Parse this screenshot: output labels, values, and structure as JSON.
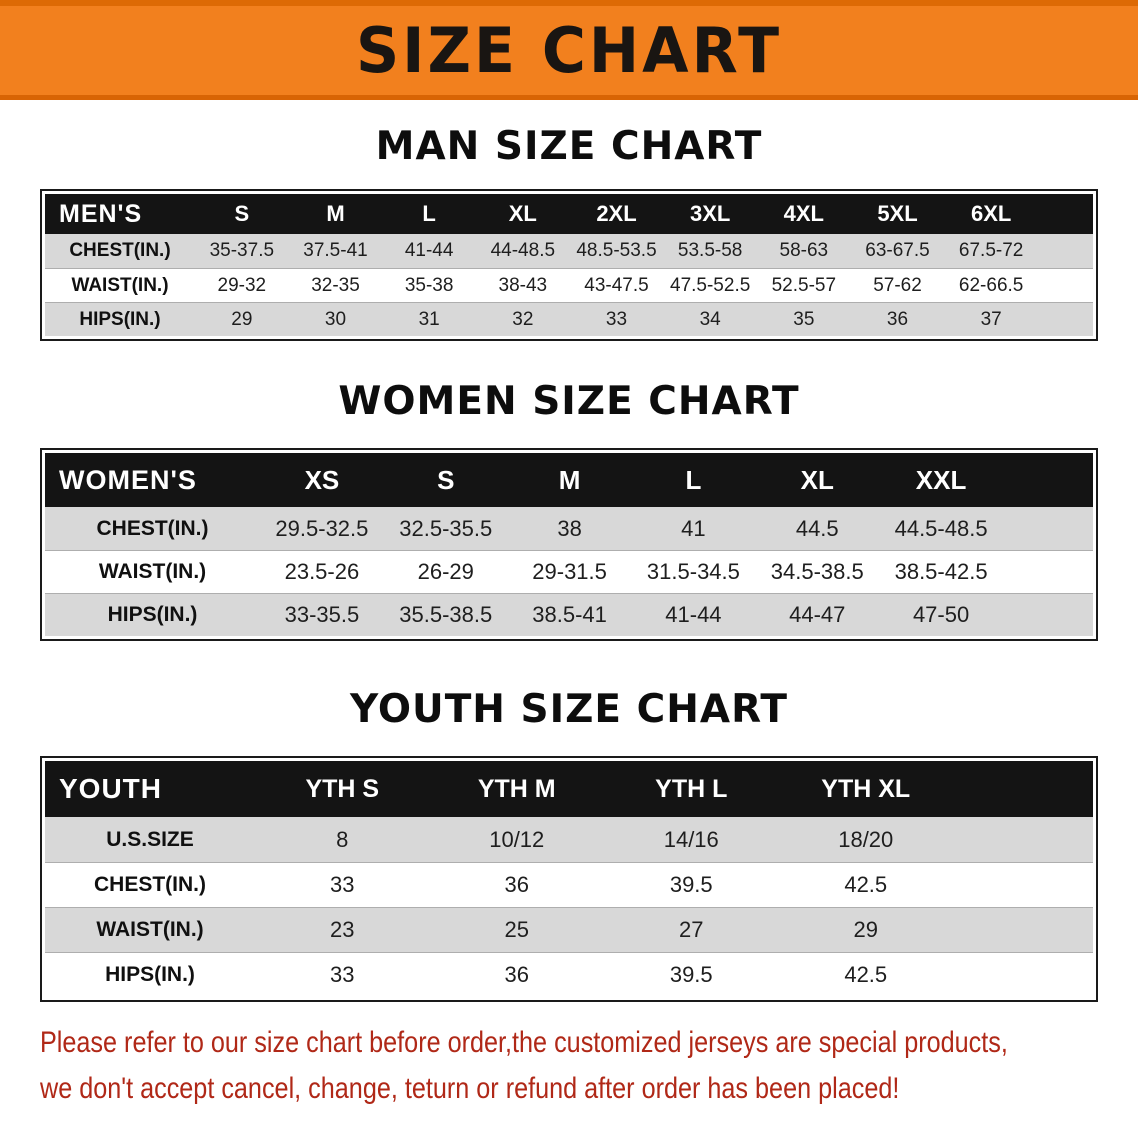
{
  "banner": {
    "title": "SIZE CHART"
  },
  "colors": {
    "banner_bg": "#f2801e",
    "table_header_bg": "#141414",
    "table_header_text": "#ffffff",
    "row_stripe": "#d8d8d8",
    "disclaimer_text": "#b02817"
  },
  "sections": [
    {
      "id": "men",
      "title": "MAN SIZE CHART",
      "table": {
        "label": "MEN'S",
        "columns": [
          "S",
          "M",
          "L",
          "XL",
          "2XL",
          "3XL",
          "4XL",
          "5XL",
          "6XL"
        ],
        "rows": [
          {
            "label": "CHEST(IN.)",
            "values": [
              "35-37.5",
              "37.5-41",
              "41-44",
              "44-48.5",
              "48.5-53.5",
              "53.5-58",
              "58-63",
              "63-67.5",
              "67.5-72"
            ]
          },
          {
            "label": "WAIST(IN.)",
            "values": [
              "29-32",
              "32-35",
              "35-38",
              "38-43",
              "43-47.5",
              "47.5-52.5",
              "52.5-57",
              "57-62",
              "62-66.5"
            ]
          },
          {
            "label": "HIPS(IN.)",
            "values": [
              "29",
              "30",
              "31",
              "32",
              "33",
              "34",
              "35",
              "36",
              "37"
            ]
          }
        ]
      }
    },
    {
      "id": "women",
      "title": "WOMEN SIZE CHART",
      "table": {
        "label": "WOMEN'S",
        "columns": [
          "XS",
          "S",
          "M",
          "L",
          "XL",
          "XXL"
        ],
        "rows": [
          {
            "label": "CHEST(IN.)",
            "values": [
              "29.5-32.5",
              "32.5-35.5",
              "38",
              "41",
              "44.5",
              "44.5-48.5"
            ]
          },
          {
            "label": "WAIST(IN.)",
            "values": [
              "23.5-26",
              "26-29",
              "29-31.5",
              "31.5-34.5",
              "34.5-38.5",
              "38.5-42.5"
            ]
          },
          {
            "label": "HIPS(IN.)",
            "values": [
              "33-35.5",
              "35.5-38.5",
              "38.5-41",
              "41-44",
              "44-47",
              "47-50"
            ]
          }
        ]
      }
    },
    {
      "id": "youth",
      "title": "YOUTH SIZE CHART",
      "table": {
        "label": "YOUTH",
        "columns": [
          "YTH S",
          "YTH M",
          "YTH L",
          "YTH XL"
        ],
        "rows": [
          {
            "label": "U.S.SIZE",
            "values": [
              "8",
              "10/12",
              "14/16",
              "18/20"
            ]
          },
          {
            "label": "CHEST(IN.)",
            "values": [
              "33",
              "36",
              "39.5",
              "42.5"
            ]
          },
          {
            "label": "WAIST(IN.)",
            "values": [
              "23",
              "25",
              "27",
              "29"
            ]
          },
          {
            "label": "HIPS(IN.)",
            "values": [
              "33",
              "36",
              "39.5",
              "42.5"
            ]
          }
        ]
      }
    }
  ],
  "footer": {
    "lines": [
      "Please refer to our size chart before order,the customized jerseys are special products,",
      "we don't accept cancel, change, teturn or refund after order has been placed!"
    ]
  }
}
